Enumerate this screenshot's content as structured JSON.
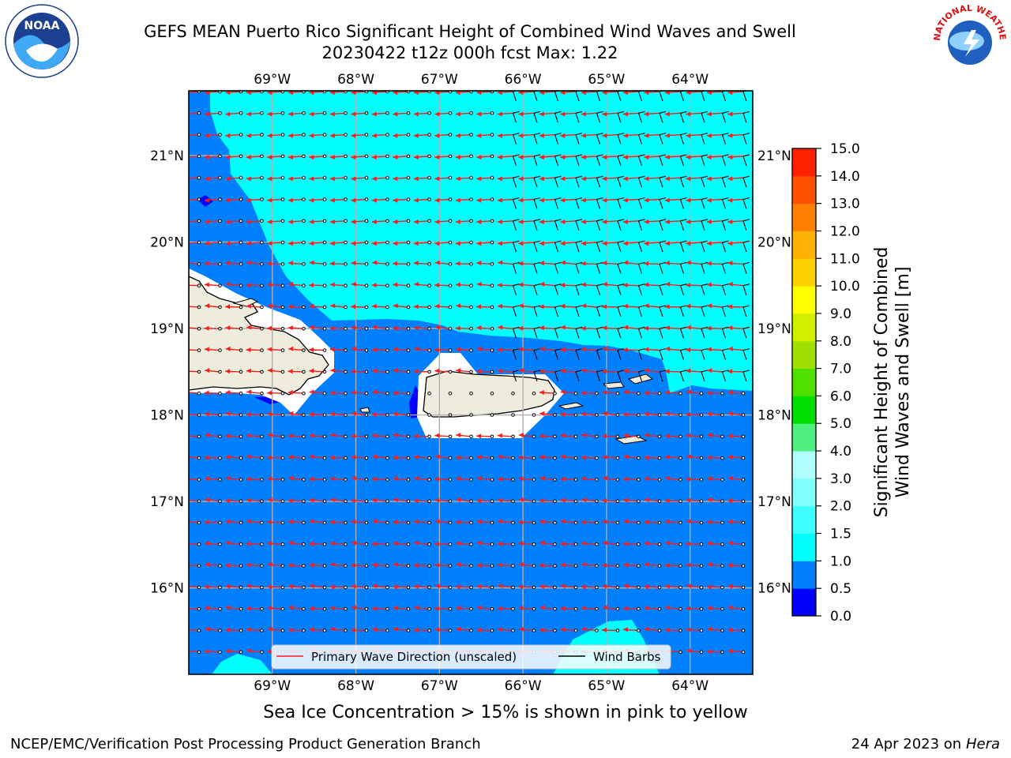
{
  "title": {
    "line1": "GEFS MEAN Puerto Rico Significant Height of Combined Wind Waves and Swell",
    "line2": "20230422 t12z 000h fcst   Max: 1.22"
  },
  "map": {
    "lon_ticks": [
      "69°W",
      "68°W",
      "67°W",
      "66°W",
      "65°W",
      "64°W"
    ],
    "lon_values": [
      -69,
      -68,
      -67,
      -66,
      -65,
      -64
    ],
    "lat_ticks": [
      "21°N",
      "20°N",
      "19°N",
      "18°N",
      "17°N",
      "16°N"
    ],
    "lat_values": [
      21,
      20,
      19,
      18,
      17,
      16
    ],
    "lon_range": [
      -70,
      -63.25
    ],
    "lat_range": [
      15.0,
      21.75
    ],
    "colors": {
      "land": "#eeeddd",
      "grid": "#b0b0b0",
      "wave_arrow": "#ff1a1a",
      "wind_barb": "#000000"
    }
  },
  "legend": {
    "wave_label": "Primary Wave Direction (unscaled)",
    "wind_label": "Wind Barbs"
  },
  "colorbar": {
    "label_line1": "Significant Height of Combined",
    "label_line2": "Wind Waves and Swell [m]",
    "tick_labels": [
      "0.0",
      "0.5",
      "1.0",
      "1.5",
      "2.0",
      "3.0",
      "4.0",
      "5.0",
      "6.0",
      "7.0",
      "8.0",
      "9.0",
      "10.0",
      "11.0",
      "12.0",
      "13.0",
      "14.0",
      "15.0"
    ],
    "colors": [
      "#0000ff",
      "#0080ff",
      "#00ffff",
      "#40ffff",
      "#80ffff",
      "#b0ffff",
      "#50f080",
      "#00e000",
      "#50e000",
      "#a0e000",
      "#d0f000",
      "#ffff00",
      "#ffd000",
      "#ffb000",
      "#ff8000",
      "#ff5000",
      "#ff2000"
    ]
  },
  "ice_note": "Sea Ice Concentration > 15% is shown in pink to yellow",
  "footer": {
    "left": "NCEP/EMC/Verification Post Processing Product Generation Branch",
    "date": "24 Apr 2023 on ",
    "host": "Hera"
  },
  "logos": {
    "left_text": "NOAA",
    "right_text": "NATIONAL WEATHER SERVICE"
  }
}
